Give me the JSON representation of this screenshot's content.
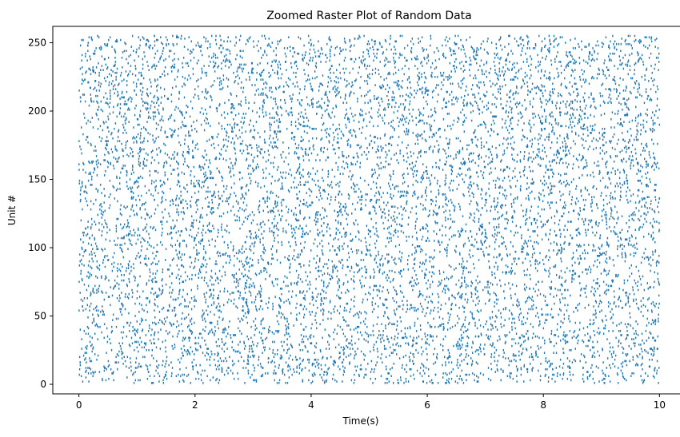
{
  "chart_data": {
    "type": "scatter",
    "subtype": "raster / eventplot",
    "title": "Zoomed Raster Plot of Random Data",
    "xlabel": "Time(s)",
    "ylabel": "Unit #",
    "xlim": [
      -0.45,
      10.45
    ],
    "ylim": [
      -7,
      262
    ],
    "xticks": [
      0,
      2,
      4,
      6,
      8,
      10
    ],
    "yticks": [
      0,
      50,
      100,
      150,
      200,
      250
    ],
    "xtick_labels": [
      "0",
      "2",
      "4",
      "6",
      "8",
      "10"
    ],
    "ytick_labels": [
      "0",
      "50",
      "100",
      "150",
      "200",
      "250"
    ],
    "grid": false,
    "legend": "none",
    "marker_color": "#1f77b4",
    "series": [
      {
        "units": {
          "first": 1,
          "last": 255
        },
        "time_range": [
          0,
          10
        ],
        "approx_events_per_unit": 38,
        "distribution": "uniform random spike times per unit",
        "sample_events": [
          {
            "unit": 5,
            "t": [
              0.12,
              0.83,
              1.47,
              2.31,
              2.95,
              3.62,
              4.18,
              4.91,
              5.54,
              6.27,
              6.88,
              7.43,
              8.09,
              8.76,
              9.38,
              9.91
            ]
          },
          {
            "unit": 50,
            "t": [
              0.34,
              0.97,
              1.66,
              2.12,
              2.84,
              3.41,
              4.07,
              4.73,
              5.25,
              5.96,
              6.52,
              7.18,
              7.87,
              8.44,
              9.07,
              9.72
            ]
          },
          {
            "unit": 100,
            "t": [
              0.05,
              0.71,
              1.29,
              1.98,
              2.57,
              3.19,
              3.88,
              4.46,
              5.11,
              5.79,
              6.34,
              7.02,
              7.66,
              8.31,
              8.95,
              9.58
            ]
          },
          {
            "unit": 150,
            "t": [
              0.22,
              0.88,
              1.53,
              2.19,
              2.77,
              3.45,
              4.02,
              4.69,
              5.37,
              5.92,
              6.61,
              7.24,
              7.81,
              8.52,
              9.14,
              9.83
            ]
          },
          {
            "unit": 200,
            "t": [
              0.41,
              1.06,
              1.74,
              2.38,
              2.99,
              3.57,
              4.24,
              4.88,
              5.49,
              6.13,
              6.79,
              7.36,
              8.02,
              8.67,
              9.29,
              9.94
            ]
          },
          {
            "unit": 250,
            "t": [
              0.16,
              0.79,
              1.42,
              2.05,
              2.71,
              3.33,
              3.96,
              4.59,
              5.18,
              5.85,
              6.47,
              7.11,
              7.73,
              8.38,
              9.01,
              9.66
            ]
          }
        ]
      }
    ]
  }
}
